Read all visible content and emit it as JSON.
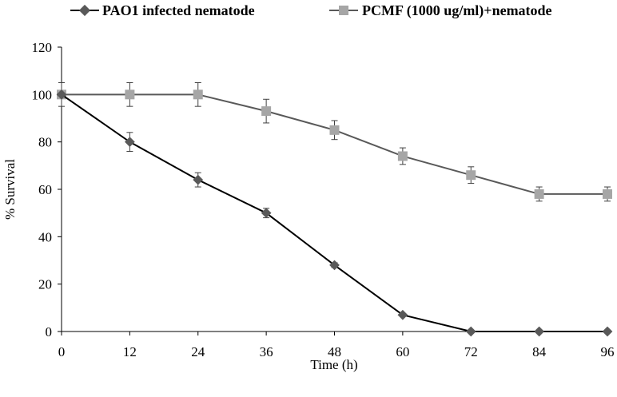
{
  "chart_data": {
    "type": "line",
    "title": "",
    "xlabel": "Time  (h)",
    "ylabel": "% Survival",
    "x": [
      0,
      12,
      24,
      36,
      48,
      60,
      72,
      84,
      96
    ],
    "xlim": [
      0,
      96
    ],
    "ylim": [
      0,
      120
    ],
    "xticks": [
      "0",
      "12",
      "24",
      "36",
      "48",
      "60",
      "72",
      "84",
      "96"
    ],
    "yticks": [
      "0",
      "20",
      "40",
      "60",
      "80",
      "100",
      "120"
    ],
    "grid": false,
    "legend_position": "top",
    "series": [
      {
        "name": "PAO1 infected nematode",
        "marker": "diamond",
        "color": "#595959",
        "line_color": "#000000",
        "values": [
          100,
          80,
          64,
          50,
          28,
          7,
          0,
          0,
          0
        ],
        "errors": [
          0,
          4,
          3,
          2,
          1,
          0,
          0,
          0,
          0
        ]
      },
      {
        "name": "PCMF (1000 ug/ml)+nematode",
        "marker": "square",
        "color": "#a6a6a6",
        "line_color": "#595959",
        "values": [
          100,
          100,
          100,
          93,
          85,
          74,
          66,
          58,
          58
        ],
        "errors": [
          5,
          5,
          5,
          5,
          4,
          3.5,
          3.5,
          3,
          3
        ]
      }
    ]
  }
}
